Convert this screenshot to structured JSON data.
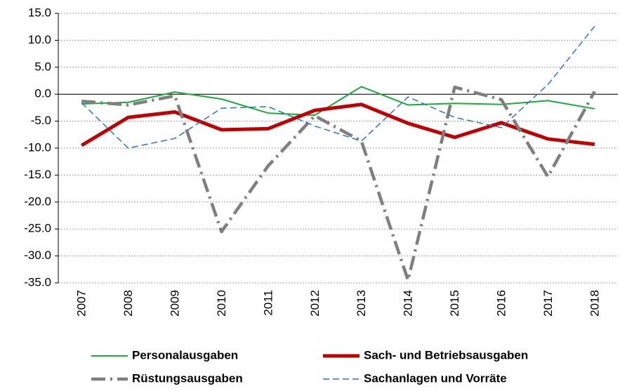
{
  "chart_data": {
    "type": "line",
    "categories": [
      "2007",
      "2008",
      "2009",
      "2010",
      "2011",
      "2012",
      "2013",
      "2014",
      "2015",
      "2016",
      "2017",
      "2018"
    ],
    "series": [
      {
        "name": "Personalausgaben",
        "color": "#1aab3c",
        "line_style": "solid",
        "values": [
          -1.8,
          -1.5,
          0.4,
          -0.9,
          -3.5,
          -3.9,
          1.4,
          -2.0,
          -1.7,
          -1.9,
          -1.2,
          -2.7
        ]
      },
      {
        "name": "Sach- und Betriebsausgaben",
        "color": "#c00000",
        "line_style": "solid",
        "values": [
          -9.5,
          -4.3,
          -3.3,
          -6.6,
          -6.4,
          -3.0,
          -1.9,
          -5.4,
          -8.0,
          -5.3,
          -8.3,
          -9.3
        ]
      },
      {
        "name": "Rüstungsausgaben",
        "color": "#7f7f7f",
        "line_style": "dash-dot",
        "values": [
          -1.3,
          -2.0,
          -0.3,
          -25.5,
          -13.3,
          -4.0,
          -8.7,
          -34.5,
          1.3,
          -1.0,
          -15.3,
          0.5
        ]
      },
      {
        "name": "Sachanlagen und Vorräte",
        "color": "#2e75b6",
        "line_style": "dashed",
        "values": [
          -1.6,
          -10.0,
          -8.2,
          -2.6,
          -2.3,
          -5.9,
          -8.7,
          -0.5,
          -4.3,
          -6.2,
          1.8,
          12.6
        ]
      }
    ],
    "ylim": [
      -35,
      15
    ],
    "yticks": [
      {
        "value": -35,
        "label": "-35.0"
      },
      {
        "value": -30,
        "label": "-30.0"
      },
      {
        "value": -25,
        "label": "-25.0"
      },
      {
        "value": -20,
        "label": "-20.0"
      },
      {
        "value": -15,
        "label": "-15.0"
      },
      {
        "value": -10,
        "label": "-10.0"
      },
      {
        "value": -5,
        "label": "-5.0"
      },
      {
        "value": 0,
        "label": "0.0"
      },
      {
        "value": 5,
        "label": "5.0"
      },
      {
        "value": 10,
        "label": "10.0"
      },
      {
        "value": 15,
        "label": "15.0"
      }
    ],
    "grid": true,
    "legend": "bottom"
  }
}
